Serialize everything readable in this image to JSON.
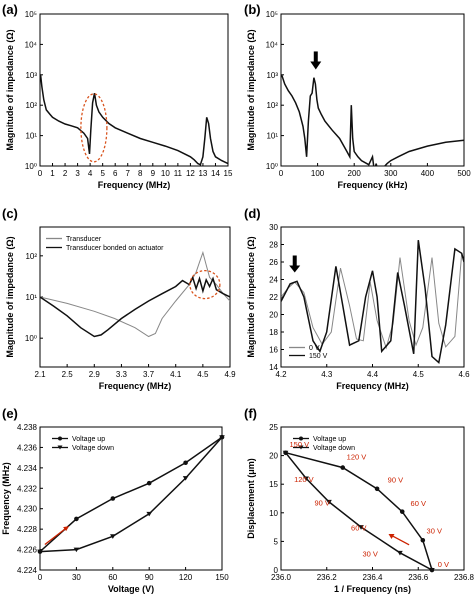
{
  "chart_data": [
    {
      "panel_label": "(a)",
      "type": "line",
      "xlabel": "Frequency (MHz)",
      "ylabel": "Magnitude of impedance (Ω)",
      "xlim": [
        0,
        15
      ],
      "ylim_log10": [
        0,
        5
      ],
      "y_log": true,
      "xticks": [
        "0",
        "1",
        "2",
        "3",
        "4",
        "5",
        "6",
        "7",
        "8",
        "9",
        "10",
        "11",
        "12",
        "13",
        "14",
        "15"
      ],
      "yticks": [
        "10⁰",
        "10¹",
        "10²",
        "10³",
        "10⁴",
        "10⁵"
      ],
      "series": [
        {
          "color": "#111111",
          "x": [
            0.05,
            0.15,
            0.3,
            0.5,
            0.8,
            1.0,
            1.5,
            2.0,
            2.5,
            3.0,
            3.5,
            3.8,
            3.95,
            4.05,
            4.2,
            4.35,
            4.5,
            4.7,
            5.0,
            5.5,
            6.0,
            7.0,
            8.0,
            9.0,
            10.0,
            11.0,
            12.0,
            12.3,
            12.6,
            12.8,
            13.0,
            13.15,
            13.3,
            13.45,
            13.6,
            13.8,
            14.0,
            14.5,
            15.0
          ],
          "y": [
            1000,
            400,
            150,
            70,
            50,
            40,
            30,
            24,
            21,
            18,
            12,
            8,
            2.5,
            15,
            120,
            250,
            100,
            60,
            40,
            25,
            18,
            12,
            8,
            6,
            4.5,
            3.2,
            2,
            1.6,
            1.2,
            1.1,
            2,
            8,
            40,
            25,
            8,
            3,
            2,
            1.5,
            1.2
          ]
        }
      ],
      "annotation": "dashed red ellipse around the resonance near 4 MHz"
    },
    {
      "panel_label": "(b)",
      "type": "line",
      "xlabel": "Frequency (kHz)",
      "ylabel": "Magnitude of impedance (Ω)",
      "xlim": [
        0,
        500
      ],
      "ylim_log10": [
        0,
        5
      ],
      "y_log": true,
      "xticks": [
        "0",
        "100",
        "200",
        "300",
        "400",
        "500"
      ],
      "yticks": [
        "10⁰",
        "10¹",
        "10²",
        "10³",
        "10⁴",
        "10⁵"
      ],
      "series": [
        {
          "color": "#111111",
          "x": [
            2,
            10,
            20,
            30,
            40,
            50,
            60,
            65,
            70,
            75,
            80,
            85,
            90,
            94,
            98,
            102,
            110,
            120,
            140,
            160,
            180,
            188,
            192,
            196,
            200,
            210,
            220,
            240,
            250,
            255,
            260,
            265,
            270,
            280,
            290,
            300,
            320,
            350,
            400,
            450,
            500
          ],
          "y": [
            1000,
            500,
            300,
            200,
            120,
            60,
            20,
            8,
            2,
            30,
            200,
            250,
            800,
            500,
            150,
            80,
            50,
            30,
            15,
            8,
            3,
            2,
            100,
            8,
            3,
            2,
            1.5,
            1.1,
            2,
            0.7,
            1.2,
            0.6,
            0.7,
            0.9,
            1.2,
            1.5,
            2,
            3,
            4.5,
            6,
            7
          ]
        }
      ],
      "annotation": "black arrow pointing to the peak near 95 kHz"
    },
    {
      "panel_label": "(c)",
      "type": "line",
      "xlabel": "Frequency (MHz)",
      "ylabel": "Magnitude of impedance (Ω)",
      "xlim": [
        2.1,
        4.9
      ],
      "ylim_log10": [
        -0.7,
        2.7
      ],
      "y_log": true,
      "xticks": [
        "2.1",
        "2.5",
        "2.9",
        "3.3",
        "3.7",
        "4.1",
        "4.5",
        "4.9"
      ],
      "yticks": [
        "10⁰",
        "10¹",
        "10²"
      ],
      "legend": [
        "Transducer",
        "Transducer bonded on actuator"
      ],
      "series": [
        {
          "name": "Transducer",
          "color": "#888888",
          "x": [
            2.1,
            2.5,
            2.9,
            3.2,
            3.5,
            3.7,
            3.8,
            3.9,
            4.1,
            4.3,
            4.4,
            4.45,
            4.5,
            4.55,
            4.6,
            4.7,
            4.8,
            4.9
          ],
          "y": [
            10,
            7,
            4.5,
            3,
            1.8,
            1.1,
            1.3,
            3,
            8,
            20,
            40,
            70,
            120,
            60,
            30,
            20,
            12,
            8
          ]
        },
        {
          "name": "Transducer bonded on actuator",
          "color": "#111111",
          "x": [
            2.1,
            2.3,
            2.5,
            2.7,
            2.9,
            3.0,
            3.1,
            3.3,
            3.5,
            3.7,
            3.9,
            4.1,
            4.2,
            4.3,
            4.35,
            4.4,
            4.45,
            4.5,
            4.55,
            4.6,
            4.65,
            4.7,
            4.8,
            4.9
          ],
          "y": [
            10,
            6,
            3.5,
            1.8,
            1.1,
            1.2,
            1.6,
            3,
            5,
            8,
            12,
            18,
            25,
            20,
            30,
            16,
            28,
            14,
            26,
            18,
            28,
            15,
            12,
            10
          ]
        }
      ],
      "annotation": "dashed red ellipse around the peaks near 4.5 MHz"
    },
    {
      "panel_label": "(d)",
      "type": "line",
      "xlabel": "Frequency (MHz)",
      "ylabel": "Magnitude of impedance (Ω)",
      "xlim": [
        4.2,
        4.6
      ],
      "ylim": [
        14,
        30
      ],
      "xticks": [
        "4.2",
        "4.3",
        "4.4",
        "4.5",
        "4.6"
      ],
      "yticks": [
        "14",
        "16",
        "18",
        "20",
        "22",
        "24",
        "26",
        "28",
        "30"
      ],
      "legend": [
        "0 V",
        "150 V"
      ],
      "series": [
        {
          "name": "0 V",
          "color": "#888888",
          "x": [
            4.2,
            4.215,
            4.23,
            4.25,
            4.27,
            4.29,
            4.31,
            4.33,
            4.35,
            4.365,
            4.38,
            4.395,
            4.41,
            4.43,
            4.445,
            4.46,
            4.48,
            4.495,
            4.51,
            4.53,
            4.545,
            4.56,
            4.58,
            4.595,
            4.6
          ],
          "y": [
            22,
            23,
            23.7,
            22.5,
            18.5,
            16.6,
            18,
            25.3,
            21,
            17.2,
            17,
            23.7,
            19.3,
            16.2,
            19,
            26.5,
            19.3,
            16.5,
            18.5,
            26.5,
            19,
            16.3,
            17.5,
            27,
            26
          ]
        },
        {
          "name": "150 V",
          "color": "#111111",
          "x": [
            4.2,
            4.22,
            4.235,
            4.25,
            4.27,
            4.285,
            4.3,
            4.32,
            4.335,
            4.35,
            4.37,
            4.385,
            4.4,
            4.41,
            4.42,
            4.44,
            4.455,
            4.47,
            4.49,
            4.5,
            4.515,
            4.53,
            4.545,
            4.56,
            4.58,
            4.595,
            4.6
          ],
          "y": [
            21.5,
            23.5,
            23.8,
            22,
            17,
            15.8,
            18,
            25.5,
            21,
            16.5,
            17,
            22,
            25,
            22,
            15.8,
            17,
            24.8,
            21,
            15.5,
            28.5,
            23,
            15.2,
            14.5,
            18.8,
            27.5,
            27,
            26
          ]
        }
      ],
      "annotation": "black arrow pointing to the peak near 4.23 MHz"
    },
    {
      "panel_label": "(e)",
      "type": "line",
      "xlabel": "Voltage (V)",
      "ylabel": "Frequency (MHz)",
      "xlim": [
        0,
        150
      ],
      "ylim": [
        4.224,
        4.238
      ],
      "xticks": [
        "0",
        "30",
        "60",
        "90",
        "120",
        "150"
      ],
      "yticks": [
        "4.224",
        "4.226",
        "4.228",
        "4.230",
        "4.232",
        "4.234",
        "4.236",
        "4.238"
      ],
      "legend": [
        "Voltage up",
        "Voltage down"
      ],
      "series": [
        {
          "name": "Voltage up",
          "color": "#111111",
          "marker": "circle",
          "x": [
            0,
            30,
            60,
            90,
            120,
            150
          ],
          "y": [
            4.2258,
            4.229,
            4.231,
            4.2325,
            4.2345,
            4.237
          ]
        },
        {
          "name": "Voltage down",
          "color": "#111111",
          "marker": "triangle-down",
          "x": [
            0,
            30,
            60,
            90,
            120,
            150
          ],
          "y": [
            4.2258,
            4.226,
            4.2273,
            4.2295,
            4.233,
            4.237
          ]
        }
      ],
      "annotation": "red arrow pointing up the voltage-up branch"
    },
    {
      "panel_label": "(f)",
      "type": "line",
      "xlabel": "1 / Frequency (ns)",
      "ylabel": "Displacement (μm)",
      "xlim": [
        236.0,
        236.8
      ],
      "ylim": [
        0,
        25
      ],
      "xticks": [
        "236.0",
        "236.2",
        "236.4",
        "236.6",
        "236.8"
      ],
      "yticks": [
        "0",
        "5",
        "10",
        "15",
        "20",
        "25"
      ],
      "legend": [
        "Voltage up",
        "Voltage down"
      ],
      "series": [
        {
          "name": "Voltage up",
          "color": "#111111",
          "marker": "circle",
          "x": [
            236.02,
            236.27,
            236.42,
            236.53,
            236.62,
            236.66
          ],
          "y": [
            20.5,
            17.9,
            14.2,
            10.2,
            5.2,
            0
          ]
        },
        {
          "name": "Voltage down",
          "color": "#111111",
          "marker": "triangle-down",
          "x": [
            236.02,
            236.11,
            236.21,
            236.35,
            236.52,
            236.66
          ],
          "y": [
            20.5,
            16,
            11.9,
            7.5,
            3,
            0
          ]
        }
      ],
      "point_labels": [
        {
          "text": "150 V",
          "x": 236.08,
          "y": 21.5
        },
        {
          "text": "120 V",
          "x": 236.33,
          "y": 19.3
        },
        {
          "text": "120 V",
          "x": 236.1,
          "y": 15.4
        },
        {
          "text": "90 V",
          "x": 236.5,
          "y": 15.3
        },
        {
          "text": "90 V",
          "x": 236.18,
          "y": 11.3
        },
        {
          "text": "60 V",
          "x": 236.6,
          "y": 11.2
        },
        {
          "text": "60 V",
          "x": 236.34,
          "y": 6.9
        },
        {
          "text": "30 V",
          "x": 236.67,
          "y": 6.4
        },
        {
          "text": "30 V",
          "x": 236.39,
          "y": 2.4
        },
        {
          "text": "0 V",
          "x": 236.71,
          "y": 0.5
        }
      ],
      "annotation": "red arrow pointing along the voltage-down branch"
    }
  ]
}
